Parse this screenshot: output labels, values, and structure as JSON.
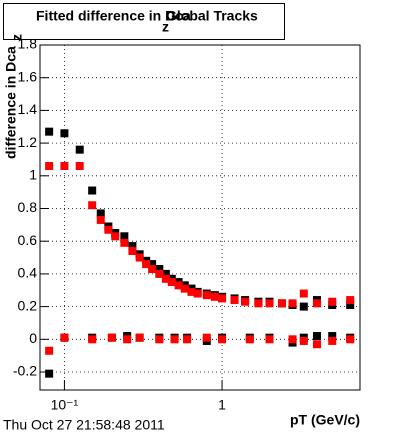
{
  "chart_data": {
    "type": "scatter",
    "title": {
      "main": "Fitted difference in Dca",
      "sub": "z",
      "tail": "Global Tracks"
    },
    "y_label": {
      "main": "difference in Dca",
      "sub": "z"
    },
    "x_label": "pT (GeV/c)",
    "timestamp": "Thu Oct 27 21:58:48 2011",
    "x_log": true,
    "grid": true,
    "xlim": [
      0.07,
      7.5
    ],
    "ylim": [
      -0.31,
      1.8
    ],
    "xticks": [
      {
        "value": 0.1,
        "label": "10⁻¹"
      },
      1
    ],
    "yticks": [
      -0.2,
      0,
      0.2,
      0.4,
      0.6,
      0.8,
      1,
      1.2,
      1.4,
      1.6,
      1.8
    ],
    "series": [
      {
        "color": "#000000",
        "x": [
          0.08,
          0.1,
          0.125,
          0.15,
          0.17,
          0.19,
          0.21,
          0.24,
          0.27,
          0.3,
          0.33,
          0.36,
          0.4,
          0.44,
          0.48,
          0.53,
          0.58,
          0.64,
          0.7,
          0.8,
          0.9,
          1.0,
          1.2,
          1.4,
          1.7,
          2.0,
          2.4,
          2.8,
          3.3,
          4,
          5,
          6.5
        ],
        "values": [
          1.27,
          1.26,
          1.16,
          0.91,
          0.77,
          0.69,
          0.65,
          0.63,
          0.57,
          0.52,
          0.48,
          0.46,
          0.43,
          0.4,
          0.37,
          0.35,
          0.33,
          0.31,
          0.29,
          0.28,
          0.27,
          0.26,
          0.25,
          0.24,
          0.23,
          0.23,
          0.22,
          0.21,
          0.2,
          0.24,
          0.21,
          0.21
        ]
      },
      {
        "color": "#ff0000",
        "x": [
          0.08,
          0.1,
          0.125,
          0.15,
          0.17,
          0.19,
          0.21,
          0.24,
          0.27,
          0.3,
          0.33,
          0.36,
          0.4,
          0.44,
          0.48,
          0.53,
          0.58,
          0.64,
          0.7,
          0.8,
          0.9,
          1.0,
          1.2,
          1.4,
          1.7,
          2.0,
          2.4,
          2.8,
          3.3,
          4,
          5,
          6.5
        ],
        "values": [
          1.06,
          1.06,
          1.06,
          0.82,
          0.73,
          0.67,
          0.63,
          0.59,
          0.54,
          0.5,
          0.46,
          0.43,
          0.4,
          0.37,
          0.35,
          0.33,
          0.31,
          0.29,
          0.28,
          0.27,
          0.26,
          0.25,
          0.24,
          0.23,
          0.22,
          0.22,
          0.22,
          0.22,
          0.28,
          0.22,
          0.23,
          0.24
        ]
      },
      {
        "color": "#000000",
        "x": [
          0.08,
          0.1,
          0.15,
          0.2,
          0.25,
          0.3,
          0.4,
          0.5,
          0.6,
          0.8,
          1.0,
          1.5,
          2,
          2.8,
          3.3,
          4,
          5,
          6.5
        ],
        "values": [
          -0.21,
          0.01,
          0.01,
          0.01,
          0.02,
          0.01,
          0.01,
          0.01,
          0.01,
          -0.01,
          0.01,
          0.01,
          0.01,
          -0.02,
          0.01,
          0.02,
          0.02,
          0.01
        ]
      },
      {
        "color": "#ff0000",
        "x": [
          0.08,
          0.1,
          0.15,
          0.2,
          0.25,
          0.3,
          0.4,
          0.5,
          0.6,
          0.8,
          1.0,
          1.5,
          2,
          2.8,
          3.3,
          4,
          5,
          6.5
        ],
        "values": [
          -0.07,
          0.01,
          0.0,
          0.01,
          0.0,
          0.01,
          0.0,
          0.0,
          0.0,
          0.01,
          0.0,
          0.0,
          0.0,
          0.0,
          -0.01,
          -0.03,
          -0.01,
          0.0
        ]
      }
    ]
  }
}
